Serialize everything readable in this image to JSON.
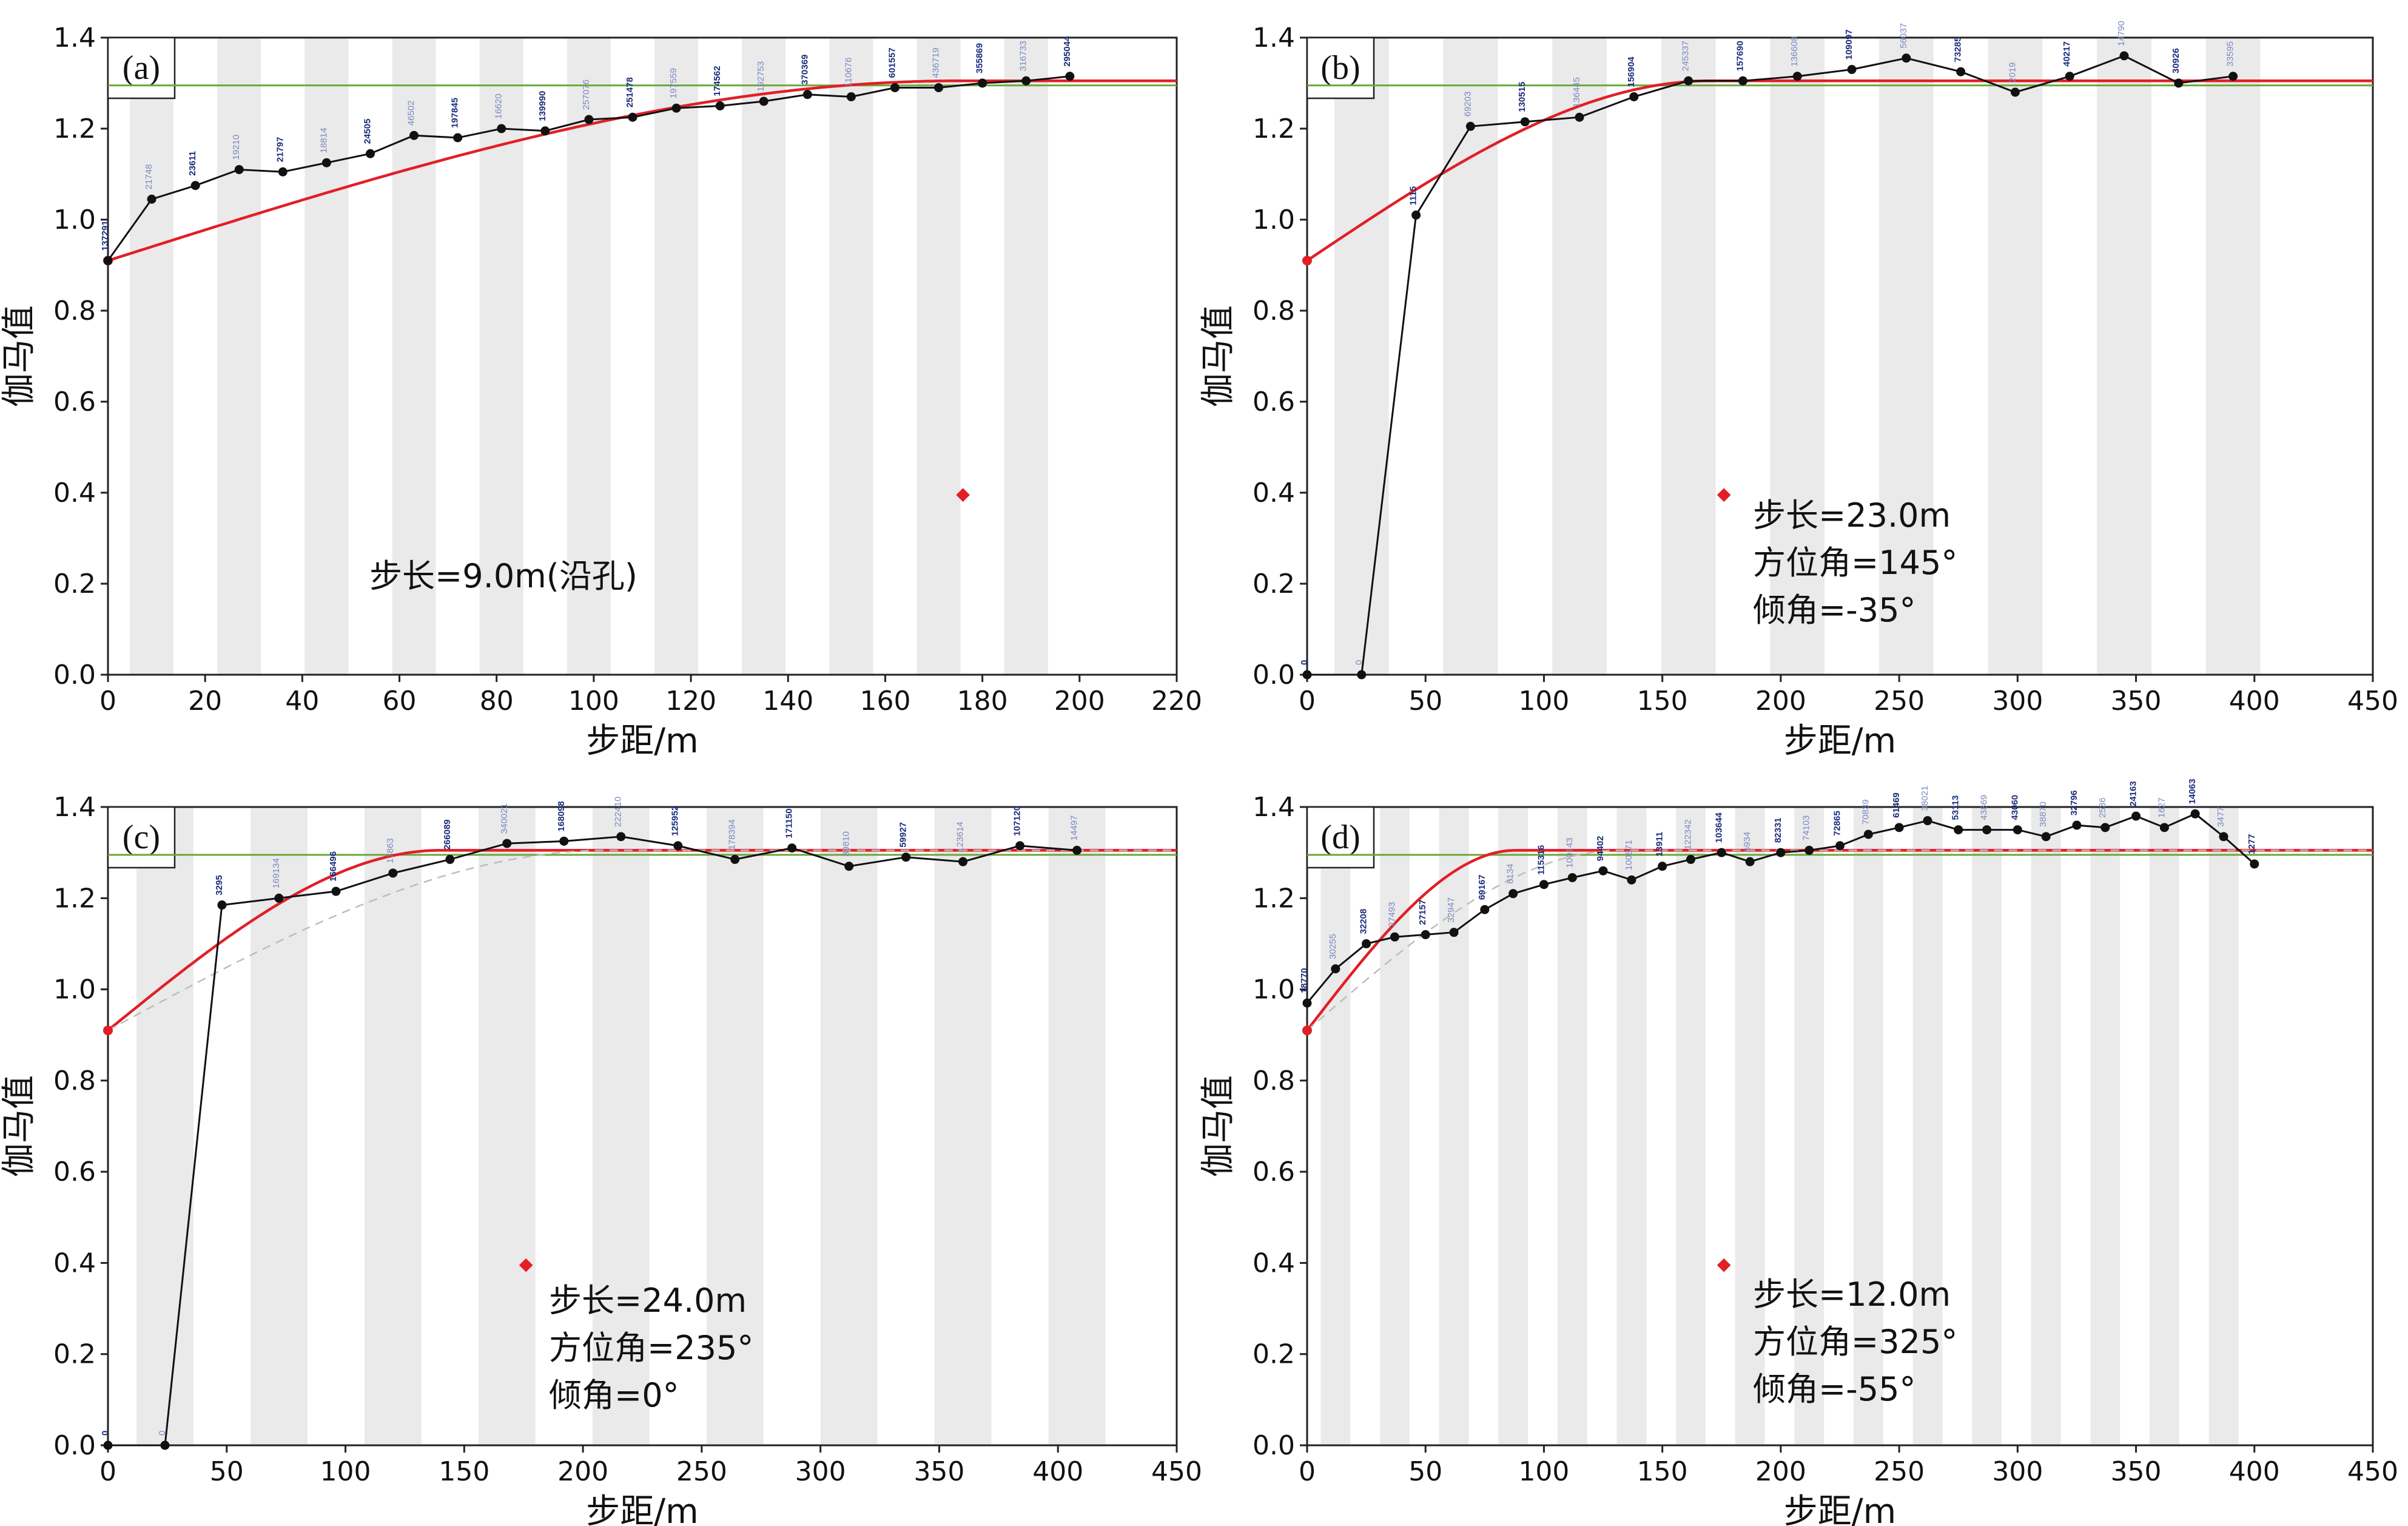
{
  "figure": {
    "title": ""
  },
  "colors": {
    "model": "#e11f26",
    "sill": "#6aa83a",
    "experimental": "#111111",
    "band": "#eaeaea",
    "dashed": "#bdbdbd",
    "label_dark": "#1b2c7a",
    "label_light": "#7c88c2"
  },
  "chart_data": [
    {
      "id": "a",
      "type": "line",
      "tag": "(a)",
      "xlabel": "步距/m",
      "ylabel": "伽马值",
      "xlim": [
        0,
        220
      ],
      "ylim": [
        0.0,
        1.4
      ],
      "xticks": [
        "0",
        "20",
        "40",
        "60",
        "80",
        "100",
        "120",
        "140",
        "160",
        "180",
        "200",
        "220"
      ],
      "yticks": [
        "0.0",
        "0.2",
        "0.4",
        "0.6",
        "0.8",
        "1.0",
        "1.2",
        "1.4"
      ],
      "annotation_lines": [
        "步长=9.0m(沿孔)"
      ],
      "sill": 1.295,
      "model": {
        "nugget": 0.91,
        "sill": 1.305,
        "range": 175,
        "shape": "spherical"
      },
      "red_marker": [
        176,
        0.395
      ],
      "experimental": {
        "x": [
          0,
          9,
          18,
          27,
          36,
          45,
          54,
          63,
          72,
          81,
          90,
          99,
          108,
          117,
          126,
          135,
          144,
          153,
          162,
          171,
          180,
          189,
          198
        ],
        "y": [
          0.91,
          1.045,
          1.075,
          1.11,
          1.105,
          1.125,
          1.145,
          1.185,
          1.18,
          1.2,
          1.195,
          1.22,
          1.225,
          1.245,
          1.25,
          1.26,
          1.275,
          1.27,
          1.29,
          1.29,
          1.3,
          1.305,
          1.315
        ],
        "pair_labels": [
          "137291",
          "21748",
          "23611",
          "19210",
          "21797",
          "18814",
          "24505",
          "46502",
          "197845",
          "16620",
          "139990",
          "257076",
          "251478",
          "197559",
          "174562",
          "192753",
          "370369",
          "110676",
          "601557",
          "436719",
          "355869",
          "316733",
          "295044"
        ]
      }
    },
    {
      "id": "b",
      "type": "line",
      "tag": "(b)",
      "xlabel": "步距/m",
      "ylabel": "伽马值",
      "xlim": [
        0,
        450
      ],
      "ylim": [
        0.0,
        1.4
      ],
      "xticks": [
        "0",
        "50",
        "100",
        "150",
        "200",
        "250",
        "300",
        "350",
        "400",
        "450"
      ],
      "yticks": [
        "0.0",
        "0.2",
        "0.4",
        "0.6",
        "0.8",
        "1.0",
        "1.2",
        "1.4"
      ],
      "annotation_lines": [
        "步长=23.0m",
        "方位角=145°",
        "倾角=-35°"
      ],
      "sill": 1.295,
      "model": {
        "nugget": 0.91,
        "sill": 1.305,
        "range": 170,
        "shape": "spherical"
      },
      "red_marker": [
        176,
        0.395
      ],
      "experimental": {
        "x": [
          0,
          23,
          46,
          69,
          92,
          115,
          138,
          161,
          184,
          207,
          230,
          253,
          276,
          299,
          322,
          345,
          368,
          391
        ],
        "y": [
          0.0,
          0.0,
          1.01,
          1.205,
          1.215,
          1.225,
          1.27,
          1.305,
          1.305,
          1.315,
          1.33,
          1.355,
          1.325,
          1.28,
          1.315,
          1.36,
          1.3,
          1.315
        ],
        "pair_labels": [
          "0",
          "0",
          "1115",
          "69203",
          "130515",
          "136445",
          "156904",
          "245337",
          "157690",
          "136608",
          "109097",
          "56037",
          "73285",
          "2019",
          "40217",
          "14790",
          "30926",
          "33595"
        ]
      }
    },
    {
      "id": "c",
      "type": "line",
      "tag": "(c)",
      "xlabel": "步距/m",
      "ylabel": "伽马值",
      "xlim": [
        0,
        450
      ],
      "ylim": [
        0.0,
        1.4
      ],
      "xticks": [
        "0",
        "50",
        "100",
        "150",
        "200",
        "250",
        "300",
        "350",
        "400",
        "450"
      ],
      "yticks": [
        "0.0",
        "0.2",
        "0.4",
        "0.6",
        "0.8",
        "1.0",
        "1.2",
        "1.4"
      ],
      "annotation_lines": [
        "步长=24.0m",
        "方位角=235°",
        "倾角=0°"
      ],
      "sill": 1.295,
      "model": {
        "nugget": 0.91,
        "sill": 1.305,
        "range": 140,
        "shape": "spherical"
      },
      "red_marker": [
        176,
        0.395
      ],
      "experimental": {
        "x": [
          0,
          24,
          48,
          72,
          96,
          120,
          144,
          168,
          192,
          216,
          240,
          264,
          288,
          312,
          336,
          360,
          384,
          408
        ],
        "y": [
          0.0,
          0.0,
          1.185,
          1.2,
          1.215,
          1.255,
          1.285,
          1.32,
          1.325,
          1.335,
          1.315,
          1.285,
          1.31,
          1.27,
          1.29,
          1.28,
          1.315,
          1.305
        ],
        "pair_labels": [
          "0",
          "0",
          "3295",
          "169134",
          "166496",
          "17863",
          "266089",
          "340021",
          "168098",
          "222410",
          "125952",
          "178394",
          "171150",
          "39810",
          "59927",
          "123614",
          "107120",
          "14497"
        ]
      }
    },
    {
      "id": "d",
      "type": "line",
      "tag": "(d)",
      "xlabel": "步距/m",
      "ylabel": "伽马值",
      "xlim": [
        0,
        450
      ],
      "ylim": [
        0.0,
        1.4
      ],
      "xticks": [
        "0",
        "50",
        "100",
        "150",
        "200",
        "250",
        "300",
        "350",
        "400",
        "450"
      ],
      "yticks": [
        "0.0",
        "0.2",
        "0.4",
        "0.6",
        "0.8",
        "1.0",
        "1.2",
        "1.4"
      ],
      "annotation_lines": [
        "步长=12.0m",
        "方位角=325°",
        "倾角=-55°"
      ],
      "sill": 1.295,
      "model": {
        "nugget": 0.91,
        "sill": 1.305,
        "range": 88,
        "shape": "spherical"
      },
      "red_marker": [
        176,
        0.395
      ],
      "experimental": {
        "x": [
          0,
          12,
          25,
          37,
          50,
          62,
          75,
          87,
          100,
          112,
          125,
          137,
          150,
          162,
          175,
          187,
          200,
          212,
          225,
          237,
          250,
          262,
          275,
          287,
          300,
          312,
          325,
          337,
          350,
          362,
          375,
          387,
          400
        ],
        "y": [
          0.97,
          1.045,
          1.1,
          1.115,
          1.12,
          1.125,
          1.175,
          1.21,
          1.23,
          1.245,
          1.26,
          1.24,
          1.27,
          1.285,
          1.3,
          1.28,
          1.3,
          1.305,
          1.315,
          1.34,
          1.355,
          1.37,
          1.35,
          1.35,
          1.35,
          1.335,
          1.36,
          1.355,
          1.38,
          1.355,
          1.385,
          1.335,
          1.275
        ],
        "pair_labels": [
          "18770",
          "30255",
          "32208",
          "27493",
          "27157",
          "32947",
          "69167",
          "8134",
          "115316",
          "100143",
          "94402",
          "100871",
          "13911",
          "122342",
          "103644",
          "5934",
          "82331",
          "74103",
          "72865",
          "70839",
          "61469",
          "38021",
          "53113",
          "43869",
          "43060",
          "38870",
          "32796",
          "2536",
          "24163",
          "1627",
          "14063",
          "3477",
          "1277"
        ]
      }
    }
  ]
}
